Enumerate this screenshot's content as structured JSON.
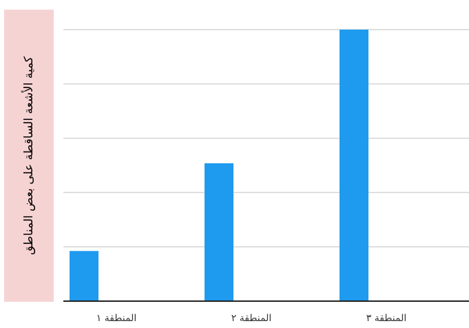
{
  "chart_data": {
    "type": "bar",
    "title": "",
    "xlabel": "",
    "ylabel": "كمية الأشعة الساقطة على بعض المناطق",
    "categories": [
      "المنطقة ١",
      "المنطقة ٢",
      "المنطقة ٣"
    ],
    "values": [
      1.2,
      3.3,
      6.5
    ],
    "ylim": [
      0,
      6.5
    ],
    "gridlines": [
      0,
      1.3,
      2.6,
      3.9,
      5.2,
      6.5
    ],
    "grid": true,
    "legend": "none",
    "bar_color": "#1e9aee",
    "ylabel_background": "#f6d3d3"
  }
}
